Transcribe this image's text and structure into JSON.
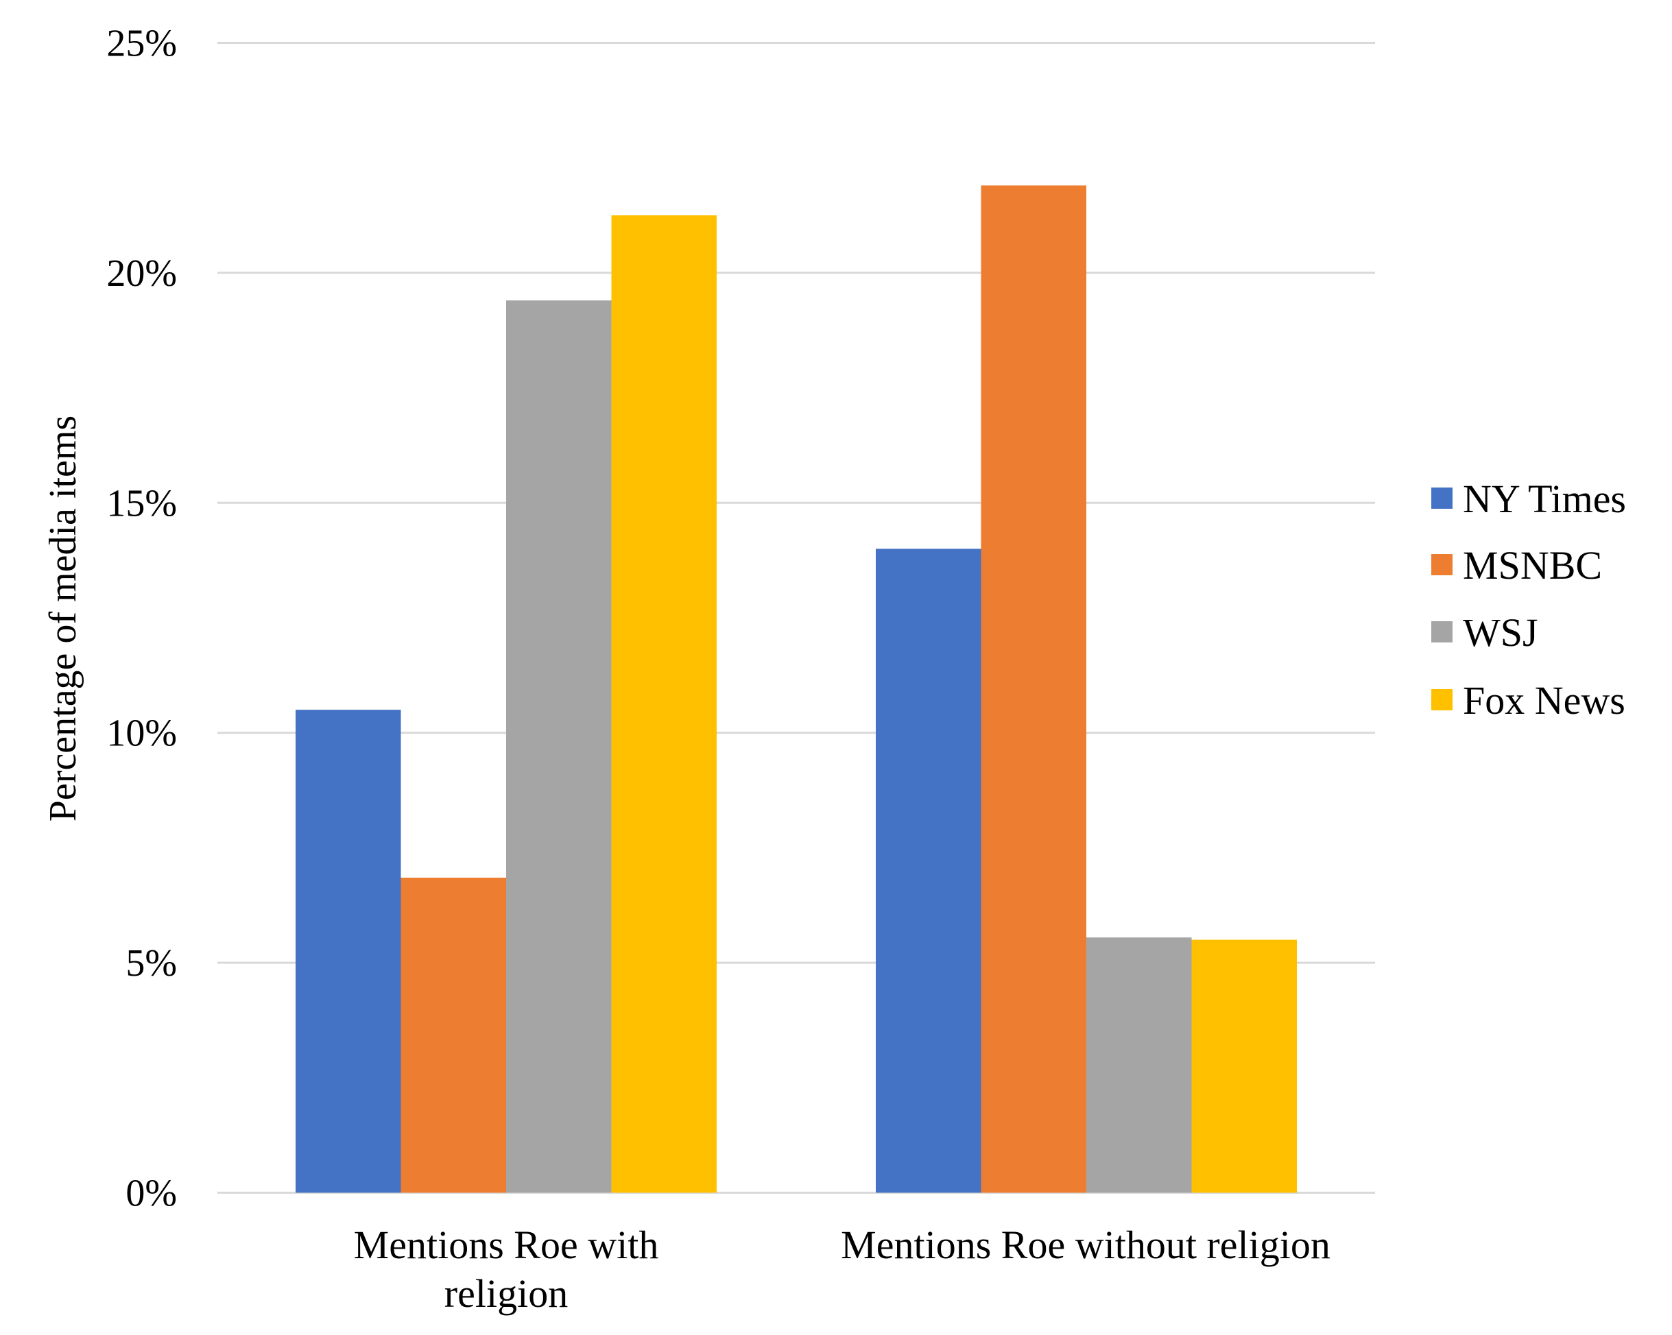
{
  "chart_data": {
    "type": "bar",
    "title": "",
    "xlabel": "",
    "ylabel": "Percentage of media items",
    "ylim": [
      0,
      25
    ],
    "yticks": [
      "0%",
      "5%",
      "10%",
      "15%",
      "20%",
      "25%"
    ],
    "ytick_values": [
      0,
      5,
      10,
      15,
      20,
      25
    ],
    "grid": true,
    "legend_position": "right",
    "categories": [
      [
        "Mentions Roe with",
        "religion"
      ],
      [
        "Mentions Roe without religion"
      ]
    ],
    "series": [
      {
        "name": "NY Times",
        "color": "#4472C4",
        "values": [
          10.5,
          14.0
        ]
      },
      {
        "name": "MSNBC",
        "color": "#ED7D31",
        "values": [
          6.85,
          21.9
        ]
      },
      {
        "name": "WSJ",
        "color": "#A5A5A5",
        "values": [
          19.4,
          5.55
        ]
      },
      {
        "name": "Fox News",
        "color": "#FFC000",
        "values": [
          21.25,
          5.5
        ]
      }
    ]
  }
}
